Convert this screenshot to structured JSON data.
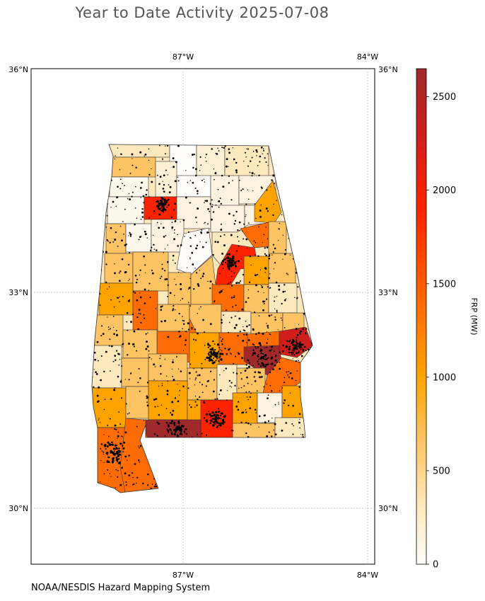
{
  "title": "Year to Date Activity 2025-07-08",
  "credit": "NOAA/NESDIS Hazard Mapping System",
  "map": {
    "region": "Alabama",
    "lon_labels": [
      "87°W",
      "84°W"
    ],
    "lat_labels": [
      "36°N",
      "33°N",
      "30°N"
    ],
    "gridlines": true
  },
  "colorbar": {
    "label": "FRP (MW)",
    "ticks": [
      "0",
      "500",
      "1000",
      "1500",
      "2000",
      "2500"
    ],
    "max": 2650,
    "colors": [
      "#fffefb",
      "#fee8b9",
      "#fec464",
      "#fda300",
      "#fe6c03",
      "#ff2200",
      "#cf1e1c",
      "#a0292b"
    ]
  },
  "chart_data": {
    "type": "choropleth",
    "title": "Year to Date Activity 2025-07-08",
    "value_label": "FRP (MW)",
    "scale_range": [
      0,
      2650
    ],
    "notes": "Counties of Alabama shaded by cumulative fire radiative power; black dots mark individual fire detections."
  }
}
